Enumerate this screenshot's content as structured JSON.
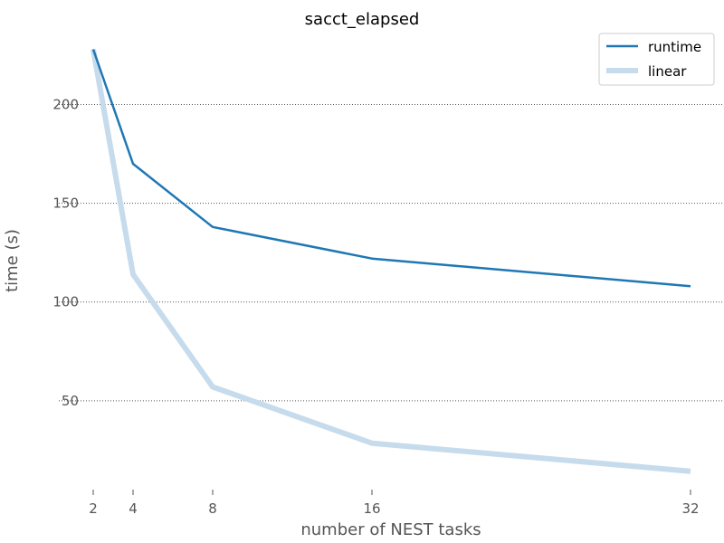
{
  "chart_data": {
    "type": "line",
    "title": "sacct_elapsed",
    "xlabel": "number of NEST tasks",
    "ylabel": "time (s)",
    "x": [
      2,
      4,
      8,
      16,
      32
    ],
    "xticks": [
      "2",
      "4",
      "8",
      "16",
      "32"
    ],
    "yticks": [
      "50",
      "100",
      "150",
      "200"
    ],
    "yticks_values": [
      50,
      100,
      150,
      200
    ],
    "xlim": [
      2,
      32
    ],
    "ylim": [
      5,
      236
    ],
    "grid": "horizontal dotted",
    "legend_position": "top-right",
    "series": [
      {
        "name": "runtime",
        "color": "#1f77b4",
        "values": [
          228,
          170,
          138,
          122,
          108
        ]
      },
      {
        "name": "linear",
        "color": "#c6dbec",
        "values": [
          228,
          114,
          57,
          28.5,
          14.3
        ]
      }
    ]
  }
}
